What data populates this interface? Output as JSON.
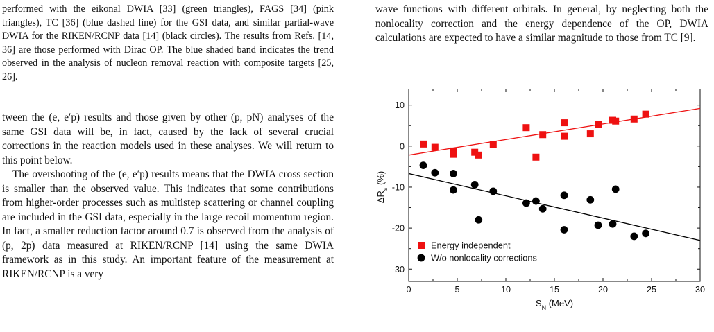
{
  "left_column": {
    "caption": "performed with the eikonal DWIA [33] (green triangles), FAGS [34] (pink triangles), TC [36] (blue dashed line) for the GSI data, and similar partial-wave DWIA for the RIKEN/RCNP data [14] (black circles). The results from Refs. [14, 36] are those performed with Dirac OP. The blue shaded band indicates the trend observed in the analysis of nucleon removal reaction with composite targets [25, 26].",
    "paragraph_1": "tween the (e, e′p) results and those given by other (p, pN) analyses of the same GSI data will be, in fact, caused by the lack of several crucial corrections in the reaction models used in these analyses. We will return to this point below.",
    "paragraph_2": "The overshooting of the (e, e′p) results means that the DWIA cross section is smaller than the observed value. This indicates that some contributions from higher-order processes such as multistep scattering or channel coupling are included in the GSI data, especially in the large recoil momentum region. In fact, a smaller reduction factor around 0.7 is observed from the analysis of (p, 2p) data measured at RIKEN/RCNP [14] using the same DWIA framework as in this study. An important feature of the measurement at RIKEN/RCNP is a very"
  },
  "right_column": {
    "paragraph_top": "wave functions with different orbitals. In general, by neglecting both the nonlocality correction and the energy dependence of the OP, DWIA calculations are expected to have a similar magnitude to those from TC [9]."
  },
  "chart_data": {
    "type": "scatter",
    "xlabel": "S_N (MeV)",
    "ylabel": "ΔR_s (%)",
    "xlim": [
      0,
      30
    ],
    "ylim": [
      -33,
      14
    ],
    "xticks": [
      "0",
      "5",
      "10",
      "15",
      "20",
      "25",
      "30"
    ],
    "yticks": [
      "10",
      "0",
      "-10",
      "-20",
      "-30"
    ],
    "legend_position": "bottom-left",
    "series": [
      {
        "name": "Energy independent",
        "marker": "square",
        "color": "#ee1111",
        "points": [
          [
            1.5,
            0.5
          ],
          [
            2.7,
            -0.3
          ],
          [
            4.6,
            -1.2
          ],
          [
            4.6,
            -2.0
          ],
          [
            6.8,
            -1.5
          ],
          [
            7.2,
            -2.2
          ],
          [
            8.7,
            0.4
          ],
          [
            12.1,
            4.5
          ],
          [
            13.1,
            -2.7
          ],
          [
            13.8,
            2.8
          ],
          [
            16.0,
            5.7
          ],
          [
            16.0,
            2.4
          ],
          [
            18.7,
            3.0
          ],
          [
            19.5,
            5.3
          ],
          [
            21.0,
            6.3
          ],
          [
            21.3,
            6.1
          ],
          [
            23.2,
            6.6
          ],
          [
            24.4,
            7.8
          ]
        ],
        "fit_line": [
          [
            0,
            -2.2
          ],
          [
            30,
            9.2
          ]
        ],
        "fit_color": "#ee1111"
      },
      {
        "name": "W/o nonlocality corrections",
        "marker": "circle",
        "color": "#000000",
        "points": [
          [
            1.5,
            -4.7
          ],
          [
            2.7,
            -6.5
          ],
          [
            4.6,
            -6.7
          ],
          [
            4.6,
            -10.7
          ],
          [
            6.8,
            -9.4
          ],
          [
            7.2,
            -18.0
          ],
          [
            8.7,
            -11.0
          ],
          [
            12.1,
            -13.9
          ],
          [
            13.1,
            -13.4
          ],
          [
            13.8,
            -15.3
          ],
          [
            16.0,
            -12.0
          ],
          [
            16.0,
            -20.4
          ],
          [
            18.7,
            -13.1
          ],
          [
            19.5,
            -19.3
          ],
          [
            21.0,
            -19.0
          ],
          [
            21.3,
            -10.5
          ],
          [
            23.2,
            -22.0
          ],
          [
            24.4,
            -21.3
          ]
        ],
        "fit_line": [
          [
            0,
            -6.7
          ],
          [
            30,
            -23.0
          ]
        ],
        "fit_color": "#000000"
      }
    ]
  }
}
